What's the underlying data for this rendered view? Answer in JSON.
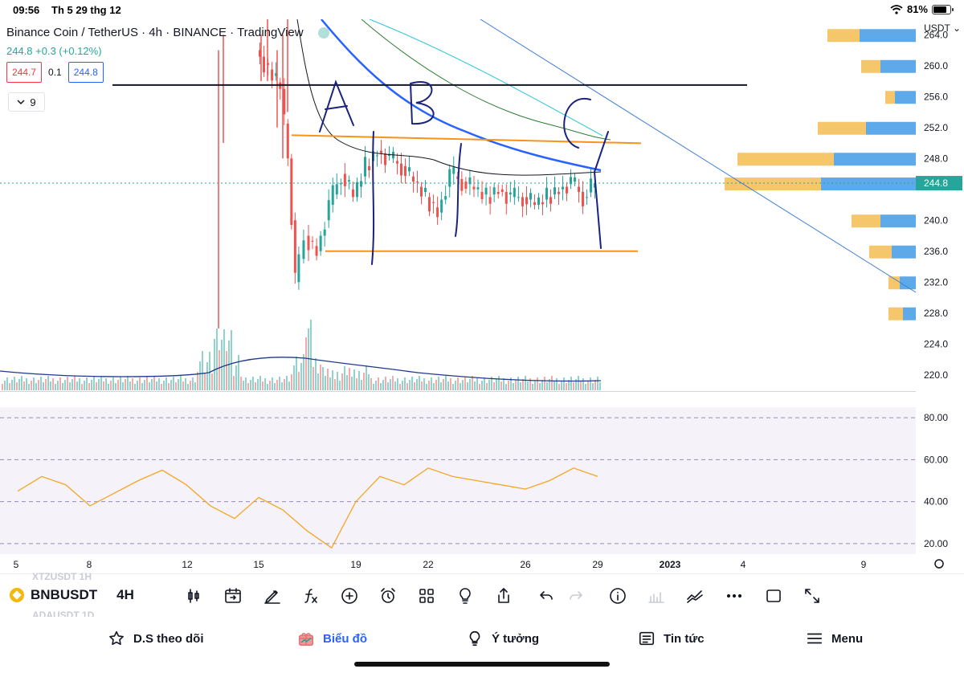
{
  "status_bar": {
    "time": "09:56",
    "date": "Th 5 29 thg 12",
    "battery": "81%",
    "battery_level": 0.81
  },
  "chart": {
    "title": "Binance Coin / TetherUS · 4h · BINANCE · TradingView",
    "last_price_change": "244.8  +0.3 (+0.12%)",
    "bid": "244.7",
    "spread": "0.1",
    "ask": "244.8",
    "indicator_count": "9",
    "currency": "USDT",
    "current_price_label": "244.8",
    "colors": {
      "up": "#26a69a",
      "down": "#ef5350",
      "rsi": "#f5a623",
      "ma_blue": "#2962ff",
      "level": "#f7931a"
    }
  },
  "chart_data": [
    {
      "type": "candlestick",
      "title": "Binance Coin / TetherUS · 4h · BINANCE · TradingView",
      "y_ticks": [
        "264.0",
        "260.0",
        "256.0",
        "252.0",
        "248.0",
        "244.8",
        "240.0",
        "236.0",
        "232.0",
        "228.0",
        "224.0",
        "220.0"
      ],
      "x_ticks": [
        "5",
        "8",
        "12",
        "15",
        "19",
        "22",
        "26",
        "29",
        "2023",
        "4",
        "9"
      ],
      "ylim": [
        218,
        266
      ],
      "horizontal_levels": [
        257.5,
        251.0,
        236.0
      ],
      "annotations": [
        "A",
        "B",
        "C"
      ],
      "close_path": [
        [
          "15",
          262
        ],
        [
          "16",
          257
        ],
        [
          "16.3",
          248
        ],
        [
          "16.6",
          232
        ],
        [
          "17",
          238
        ],
        [
          "17.5",
          236
        ],
        [
          "18",
          242
        ],
        [
          "18.5",
          246
        ],
        [
          "19",
          243
        ],
        [
          "19.5",
          247
        ],
        [
          "20",
          249
        ],
        [
          "20.5",
          248
        ],
        [
          "21",
          247
        ],
        [
          "21.5",
          245
        ],
        [
          "22",
          243
        ],
        [
          "22.5",
          241
        ],
        [
          "23",
          246
        ],
        [
          "23.5",
          245
        ],
        [
          "24",
          244
        ],
        [
          "24.5",
          243
        ],
        [
          "25",
          244
        ],
        [
          "25.5",
          243
        ],
        [
          "26",
          243
        ],
        [
          "26.5",
          242
        ],
        [
          "27",
          243
        ],
        [
          "27.5",
          244
        ],
        [
          "28",
          245
        ],
        [
          "28.5",
          243
        ],
        [
          "29",
          244.8
        ]
      ]
    },
    {
      "type": "line",
      "title": "RSI",
      "y_ticks": [
        "80.00",
        "60.00",
        "40.00",
        "20.00"
      ],
      "ylim": [
        15,
        85
      ],
      "x": [
        "5",
        "6",
        "7",
        "8",
        "9",
        "10",
        "11",
        "12",
        "13",
        "14",
        "15",
        "16",
        "17",
        "18",
        "19",
        "20",
        "21",
        "22",
        "23",
        "24",
        "25",
        "26",
        "27",
        "28",
        "29"
      ],
      "values": [
        45,
        52,
        48,
        38,
        44,
        50,
        55,
        48,
        38,
        32,
        42,
        36,
        26,
        18,
        40,
        52,
        48,
        56,
        52,
        50,
        48,
        46,
        50,
        56,
        52
      ]
    }
  ],
  "toolbar": {
    "ghost_symbol_top": "XTZUSDT   1H",
    "ghost_symbol_bottom": "ADAUSDT   1D",
    "symbol": "BNBUSDT",
    "timeframe": "4H",
    "tools": [
      "candles-icon",
      "replay-icon",
      "draw-icon",
      "indicators-icon",
      "add-icon",
      "alert-icon",
      "layouts-icon",
      "ideas-icon",
      "share-icon",
      "undo-icon",
      "redo-icon",
      "info-icon",
      "volume-icon",
      "compare-icon",
      "more-icon",
      "fullscreen-box-icon",
      "expand-icon"
    ]
  },
  "bottom_nav": [
    {
      "label": "D.S theo dõi",
      "icon": "star-icon"
    },
    {
      "label": "Biểu đồ",
      "icon": "chart-gift-icon"
    },
    {
      "label": "Ý tưởng",
      "icon": "lightbulb-icon"
    },
    {
      "label": "Tin tức",
      "icon": "news-icon"
    },
    {
      "label": "Menu",
      "icon": "menu-icon"
    }
  ]
}
